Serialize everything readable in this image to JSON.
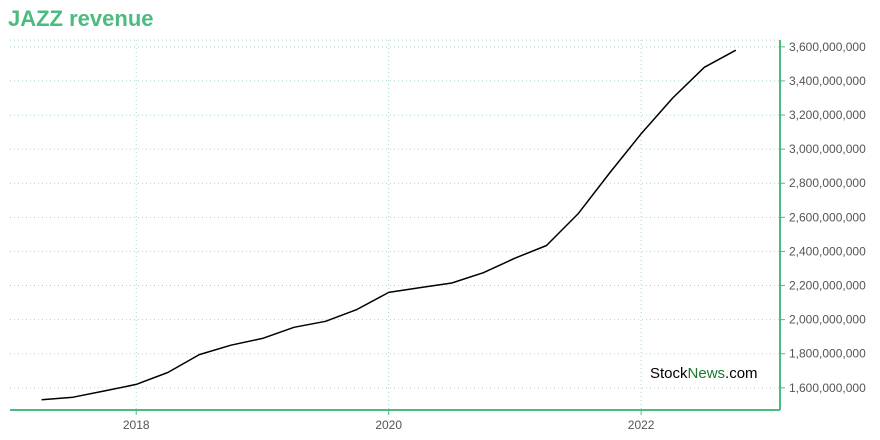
{
  "chart_data": {
    "type": "line",
    "title": "JAZZ revenue",
    "xlabel": "",
    "ylabel": "",
    "x_ticks": [
      2018,
      2020,
      2022
    ],
    "y_ticks": [
      "1,600,000,000",
      "1,800,000,000",
      "2,000,000,000",
      "2,200,000,000",
      "2,400,000,000",
      "2,600,000,000",
      "2,800,000,000",
      "3,000,000,000",
      "3,200,000,000",
      "3,400,000,000",
      "3,600,000,000"
    ],
    "y_tick_values": [
      1600000000,
      1800000000,
      2000000000,
      2200000000,
      2400000000,
      2600000000,
      2800000000,
      3000000000,
      3200000000,
      3400000000,
      3600000000
    ],
    "xlim": [
      2017.0,
      2023.1
    ],
    "ylim": [
      1470000000,
      3640000000
    ],
    "grid": true,
    "y_axis_side": "right",
    "series": [
      {
        "x": [
          2017.25,
          2017.5,
          2017.75,
          2018.0,
          2018.25,
          2018.5,
          2018.75,
          2019.0,
          2019.25,
          2019.5,
          2019.75,
          2020.0,
          2020.25,
          2020.5,
          2020.75,
          2021.0,
          2021.25,
          2021.5,
          2021.75,
          2022.0,
          2022.25,
          2022.5,
          2022.75
        ],
        "y": [
          1530000000,
          1545000000,
          1582000000,
          1620000000,
          1690000000,
          1795000000,
          1850000000,
          1890000000,
          1955000000,
          1990000000,
          2060000000,
          2160000000,
          2188000000,
          2215000000,
          2275000000,
          2360000000,
          2435000000,
          2620000000,
          2860000000,
          3090000000,
          3300000000,
          3480000000,
          3580000000
        ],
        "color": "#000000"
      }
    ],
    "colors": {
      "accent": "#4cbb7f",
      "grid": "#a8d8c0",
      "line": "#000000"
    }
  },
  "watermark": {
    "part_a": "Stock",
    "part_b": "News",
    "part_c": ".com"
  }
}
